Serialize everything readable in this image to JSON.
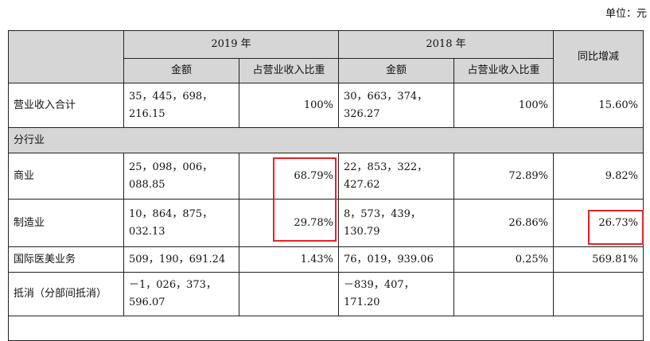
{
  "unit_label": "单位：元",
  "headers": {
    "y2019": "2019 年",
    "y2018": "2018 年",
    "yoy": "同比增减",
    "amount": "金额",
    "ratio": "占营业收入比重"
  },
  "rows": [
    {
      "label": "营业收入合计",
      "a2019": "35，445，698，216.15",
      "r2019": "100%",
      "a2018": "30，663，374，326.27",
      "r2018": "100%",
      "yoy": "15.60%"
    },
    {
      "section": "分行业"
    },
    {
      "label": "商业",
      "a2019": "25，098，006，088.85",
      "r2019": "68.79%",
      "a2018": "22，853，322，427.62",
      "r2018": "72.89%",
      "yoy": "9.82%"
    },
    {
      "label": "制造业",
      "a2019": "10，864，875，032.13",
      "r2019": "29.78%",
      "a2018": "8，573，439，130.79",
      "r2018": "26.86%",
      "yoy": "26.73%"
    },
    {
      "label": "国际医美业务",
      "a2019": "509，190，691.24",
      "r2019": "1.43%",
      "a2018": "76，019，939.06",
      "r2018": "0.25%",
      "yoy": "569.81%"
    },
    {
      "label": "抵消（分部间抵消）",
      "a2019": "－1，026，373，596.07",
      "r2019": "",
      "a2018": "－839，407，171.20",
      "r2018": "",
      "yoy": ""
    }
  ],
  "highlight_color": "#e8202a"
}
